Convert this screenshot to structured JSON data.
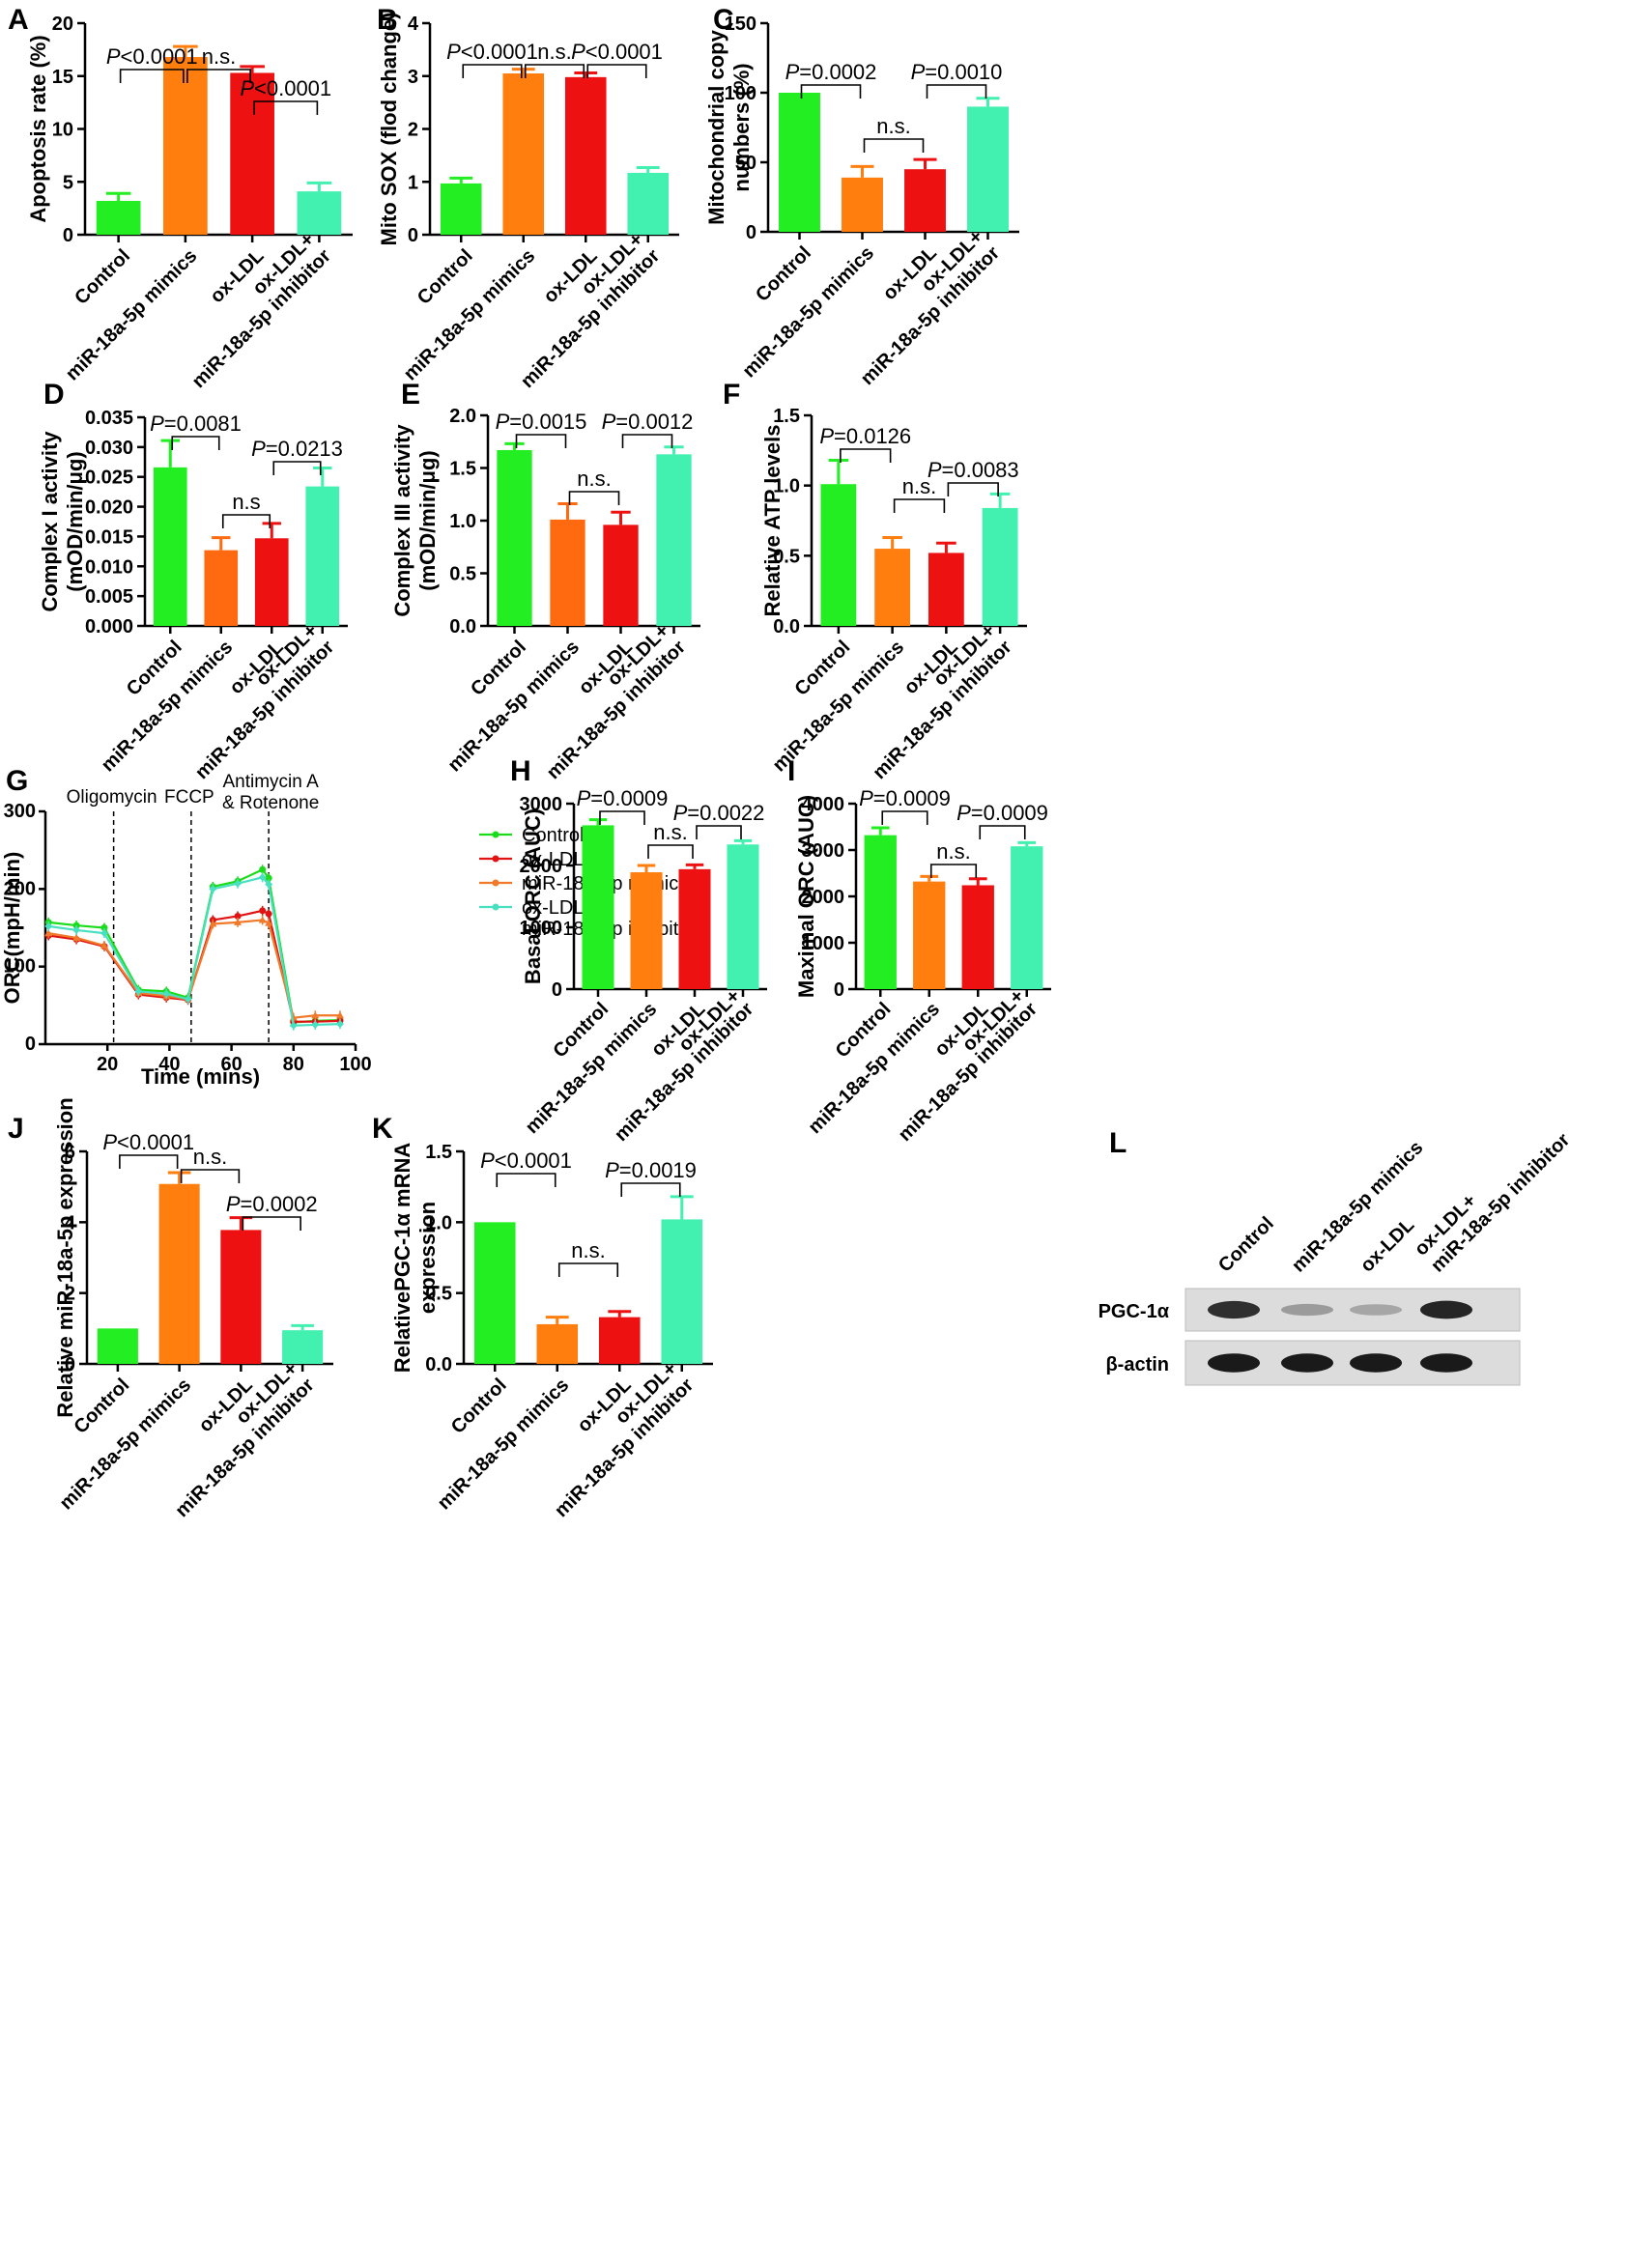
{
  "colors": {
    "control": "#22ee22",
    "mimics": "#ff7e0e",
    "mimics_deep": "#ff6a10",
    "oxldl": "#ee1111",
    "inhibitor": "#42f0b0",
    "line_control": "#1adc1a",
    "line_oxldl": "#e01212",
    "line_mimics": "#f07a2a",
    "line_inhibitor": "#48e0c0"
  },
  "chart_data": [
    {
      "id": "A",
      "label": "A",
      "type": "bar",
      "ylabel": [
        "Apoptosis rate (%)"
      ],
      "ylim": [
        0,
        20
      ],
      "yticks": [
        "0",
        "5",
        "10",
        "15",
        "20"
      ],
      "categories": [
        [
          "Control"
        ],
        [
          "miR-18a-5p mimics"
        ],
        [
          "ox-LDL"
        ],
        [
          "ox-LDL+",
          "miR-18a-5p inhibitor"
        ]
      ],
      "values": [
        3.2,
        16.8,
        15.3,
        4.1
      ],
      "errors": [
        0.7,
        1.0,
        0.6,
        0.8
      ],
      "annotations": [
        {
          "from": 0,
          "to": 1,
          "text": "P<0.0001",
          "italicP": true,
          "level": 0
        },
        {
          "from": 1,
          "to": 2,
          "text": "n.s.",
          "italicP": false,
          "level": 0
        },
        {
          "from": 2,
          "to": 3,
          "text": "P<0.0001",
          "italicP": true,
          "level": 1
        }
      ]
    },
    {
      "id": "B",
      "label": "B",
      "type": "bar",
      "ylabel": [
        "Mito SOX (flod change)"
      ],
      "ylim": [
        0,
        4
      ],
      "yticks": [
        "0",
        "1",
        "2",
        "3",
        "4"
      ],
      "categories": [
        [
          "Control"
        ],
        [
          "miR-18a-5p mimics"
        ],
        [
          "ox-LDL"
        ],
        [
          "ox-LDL+",
          "miR-18a-5p inhibitor"
        ]
      ],
      "values": [
        0.97,
        3.05,
        2.98,
        1.17
      ],
      "errors": [
        0.1,
        0.08,
        0.08,
        0.1
      ],
      "annotations": [
        {
          "from": 0,
          "to": 1,
          "text": "P<0.0001",
          "italicP": true,
          "level": 0
        },
        {
          "from": 1,
          "to": 2,
          "text": "n.s.",
          "italicP": false,
          "level": 0
        },
        {
          "from": 2,
          "to": 3,
          "text": "P<0.0001",
          "italicP": true,
          "level": 0
        }
      ]
    },
    {
      "id": "C",
      "label": "C",
      "type": "bar",
      "ylabel": [
        "Mitochondrial copy",
        "numbers (%)"
      ],
      "ylim": [
        0,
        150
      ],
      "yticks": [
        "0",
        "50",
        "100",
        "150"
      ],
      "categories": [
        [
          "Control"
        ],
        [
          "miR-18a-5p mimics"
        ],
        [
          "ox-LDL"
        ],
        [
          "ox-LDL+",
          "miR-18a-5p inhibitor"
        ]
      ],
      "values": [
        100,
        39,
        45,
        90
      ],
      "errors": [
        0,
        8,
        7,
        6
      ],
      "annotations": [
        {
          "from": 0,
          "to": 1,
          "text": "P=0.0002",
          "italicP": true,
          "level": 0
        },
        {
          "from": 1,
          "to": 2,
          "text": "n.s.",
          "italicP": false,
          "level": 0
        },
        {
          "from": 2,
          "to": 3,
          "text": "P=0.0010",
          "italicP": true,
          "level": 0
        }
      ]
    },
    {
      "id": "D",
      "label": "D",
      "type": "bar",
      "ylabel": [
        "Complex I activity",
        "(mOD/min/μg)"
      ],
      "ylim": [
        0,
        0.035
      ],
      "yticks": [
        "0.000",
        "0.005",
        "0.010",
        "0.015",
        "0.020",
        "0.025",
        "0.030",
        "0.035"
      ],
      "categories": [
        [
          "Control"
        ],
        [
          "miR-18a-5p mimics"
        ],
        [
          "ox-LDL"
        ],
        [
          "ox-LDL+",
          "miR-18a-5p inhibitor"
        ]
      ],
      "values": [
        0.0266,
        0.0127,
        0.0147,
        0.0234
      ],
      "errors": [
        0.0045,
        0.0021,
        0.0025,
        0.0031
      ],
      "annotations": [
        {
          "from": 0,
          "to": 1,
          "text": "P=0.0081",
          "italicP": true,
          "level": 0
        },
        {
          "from": 1,
          "to": 2,
          "text": "n.s",
          "italicP": false,
          "level": 0
        },
        {
          "from": 2,
          "to": 3,
          "text": "P=0.0213",
          "italicP": true,
          "level": 0
        }
      ]
    },
    {
      "id": "E",
      "label": "E",
      "type": "bar",
      "ylabel": [
        "Complex III activity",
        "(mOD/min/μg)"
      ],
      "ylim": [
        0,
        2.0
      ],
      "yticks": [
        "0.0",
        "0.5",
        "1.0",
        "1.5",
        "2.0"
      ],
      "categories": [
        [
          "Control"
        ],
        [
          "miR-18a-5p mimics"
        ],
        [
          "ox-LDL"
        ],
        [
          "ox-LDL+",
          "miR-18a-5p inhibitor"
        ]
      ],
      "values": [
        1.67,
        1.01,
        0.96,
        1.63
      ],
      "errors": [
        0.06,
        0.15,
        0.12,
        0.07
      ],
      "annotations": [
        {
          "from": 0,
          "to": 1,
          "text": "P=0.0015",
          "italicP": true,
          "level": 0
        },
        {
          "from": 1,
          "to": 2,
          "text": "n.s.",
          "italicP": false,
          "level": 0
        },
        {
          "from": 2,
          "to": 3,
          "text": "P=0.0012",
          "italicP": true,
          "level": 0
        }
      ]
    },
    {
      "id": "F",
      "label": "F",
      "type": "bar",
      "ylabel": [
        "Relative ATP levels"
      ],
      "ylim": [
        0,
        1.5
      ],
      "yticks": [
        "0.0",
        "0.5",
        "1.0",
        "1.5"
      ],
      "categories": [
        [
          "Control"
        ],
        [
          "miR-18a-5p mimics"
        ],
        [
          "ox-LDL"
        ],
        [
          "ox-LDL+",
          "miR-18a-5p inhibitor"
        ]
      ],
      "values": [
        1.01,
        0.55,
        0.52,
        0.84
      ],
      "errors": [
        0.17,
        0.08,
        0.07,
        0.1
      ],
      "annotations": [
        {
          "from": 0,
          "to": 1,
          "text": "P=0.0126",
          "italicP": true,
          "level": 0
        },
        {
          "from": 1,
          "to": 2,
          "text": "n.s.",
          "italicP": false,
          "level": 0
        },
        {
          "from": 2,
          "to": 3,
          "text": "P=0.0083",
          "italicP": true,
          "level": 0
        }
      ]
    },
    {
      "id": "G",
      "label": "G",
      "type": "line",
      "xlabel": "Time (mins)",
      "ylabel": [
        "ORC(mpH/min)"
      ],
      "xlim": [
        0,
        100
      ],
      "ylim": [
        0,
        300
      ],
      "xticks": [
        "20",
        "40",
        "60",
        "80",
        "100"
      ],
      "yticks": [
        "0",
        "100",
        "200",
        "300"
      ],
      "x": [
        1,
        10,
        19,
        30,
        39,
        46,
        54,
        62,
        70,
        72,
        80,
        87,
        95
      ],
      "series": [
        {
          "name": "Control",
          "values": [
            157,
            153,
            150,
            70,
            68,
            60,
            203,
            210,
            225,
            214,
            28,
            30,
            31
          ]
        },
        {
          "name": "ox-LDL",
          "values": [
            140,
            135,
            126,
            64,
            60,
            57,
            160,
            165,
            172,
            168,
            29,
            29,
            30
          ]
        },
        {
          "name": "miR-18a-5p mimics",
          "values": [
            143,
            137,
            127,
            66,
            62,
            58,
            155,
            157,
            160,
            156,
            34,
            37,
            37
          ]
        },
        {
          "name": "ox-LDL+\nmiR-18a-5p inhibitor",
          "values": [
            152,
            147,
            143,
            68,
            65,
            58,
            200,
            207,
            215,
            206,
            24,
            25,
            26
          ]
        }
      ],
      "events": [
        {
          "x": 22,
          "label": [
            "Oligomycin"
          ]
        },
        {
          "x": 47,
          "label": [
            "FCCP"
          ]
        },
        {
          "x": 72,
          "label": [
            "Antimycin A",
            "& Rotenone"
          ]
        }
      ],
      "legend": [
        "Control",
        "ox-LDL",
        "miR-18a-5p mimics",
        "ox-LDL+",
        "miR-18a-5p inhibitor"
      ],
      "legend_position": "right"
    },
    {
      "id": "H",
      "label": "H",
      "type": "bar",
      "ylabel": [
        "Basal ORC (AUC)"
      ],
      "ylim": [
        0,
        3000
      ],
      "yticks": [
        "0",
        "1000",
        "2000",
        "3000"
      ],
      "categories": [
        [
          "Control"
        ],
        [
          "miR-18a-5p mimics"
        ],
        [
          "ox-LDL"
        ],
        [
          "ox-LDL+",
          "miR-18a-5p inhibitor"
        ]
      ],
      "values": [
        2650,
        1890,
        1940,
        2340
      ],
      "errors": [
        90,
        110,
        70,
        60
      ],
      "annotations": [
        {
          "from": 0,
          "to": 1,
          "text": "P=0.0009",
          "italicP": true,
          "level": 0
        },
        {
          "from": 1,
          "to": 2,
          "text": "n.s.",
          "italicP": false,
          "level": 0
        },
        {
          "from": 2,
          "to": 3,
          "text": "P=0.0022",
          "italicP": true,
          "level": 0
        }
      ]
    },
    {
      "id": "I",
      "label": "I",
      "type": "bar",
      "ylabel": [
        "Maximal ORC (AUC)"
      ],
      "ylim": [
        0,
        4000
      ],
      "yticks": [
        "0",
        "1000",
        "2000",
        "3000",
        "4000"
      ],
      "categories": [
        [
          "Control"
        ],
        [
          "miR-18a-5p mimics"
        ],
        [
          "ox-LDL"
        ],
        [
          "ox-LDL+",
          "miR-18a-5p inhibitor"
        ]
      ],
      "values": [
        3320,
        2320,
        2240,
        3080
      ],
      "errors": [
        160,
        110,
        140,
        80
      ],
      "annotations": [
        {
          "from": 0,
          "to": 1,
          "text": "P=0.0009",
          "italicP": true,
          "level": 0
        },
        {
          "from": 1,
          "to": 2,
          "text": "n.s.",
          "italicP": false,
          "level": 0
        },
        {
          "from": 2,
          "to": 3,
          "text": "P=0.0009",
          "italicP": true,
          "level": 0
        }
      ]
    },
    {
      "id": "J",
      "label": "J",
      "type": "bar",
      "ylabel": [
        "Relative miR-18a-5p expression"
      ],
      "ylim": [
        0,
        6
      ],
      "yticks": [
        "0",
        "2",
        "4",
        "6"
      ],
      "categories": [
        [
          "Control"
        ],
        [
          "miR-18a-5p mimics"
        ],
        [
          "ox-LDL"
        ],
        [
          "ox-LDL+",
          "miR-18a-5p inhibitor"
        ]
      ],
      "values": [
        1.0,
        5.08,
        3.78,
        0.95
      ],
      "errors": [
        0,
        0.32,
        0.35,
        0.13
      ],
      "annotations": [
        {
          "from": 0,
          "to": 1,
          "text": "P<0.0001",
          "italicP": true,
          "level": 0
        },
        {
          "from": 1,
          "to": 2,
          "text": "n.s.",
          "italicP": false,
          "level": 0
        },
        {
          "from": 2,
          "to": 3,
          "text": "P=0.0002",
          "italicP": true,
          "level": 0
        }
      ]
    },
    {
      "id": "K",
      "label": "K",
      "type": "bar",
      "ylabel": [
        "RelativePGC-1α mRNA",
        "expression"
      ],
      "ylim": [
        0,
        1.5
      ],
      "yticks": [
        "0.0",
        "0.5",
        "1.0",
        "1.5"
      ],
      "categories": [
        [
          "Control"
        ],
        [
          "miR-18a-5p mimics"
        ],
        [
          "ox-LDL"
        ],
        [
          "ox-LDL+",
          "miR-18a-5p inhibitor"
        ]
      ],
      "values": [
        1.0,
        0.28,
        0.33,
        1.02
      ],
      "errors": [
        0,
        0.05,
        0.04,
        0.16
      ],
      "annotations": [
        {
          "from": 0,
          "to": 1,
          "text": "P<0.0001",
          "italicP": true,
          "level": 0
        },
        {
          "from": 1,
          "to": 2,
          "text": "n.s.",
          "italicP": false,
          "level": 0
        },
        {
          "from": 2,
          "to": 3,
          "text": "P=0.0019",
          "italicP": true,
          "level": 0
        }
      ]
    }
  ],
  "western_blot": {
    "label": "L",
    "lanes": [
      [
        "Control"
      ],
      [
        "miR-18a-5p mimics"
      ],
      [
        "ox-LDL"
      ],
      [
        "ox-LDL+",
        "miR-18a-5p inhibitor"
      ]
    ],
    "rows": [
      {
        "name": "PGC-1α",
        "intensity": [
          0.85,
          0.35,
          0.3,
          0.9
        ]
      },
      {
        "name": "β-actin",
        "intensity": [
          0.95,
          0.95,
          0.95,
          0.95
        ]
      }
    ]
  }
}
